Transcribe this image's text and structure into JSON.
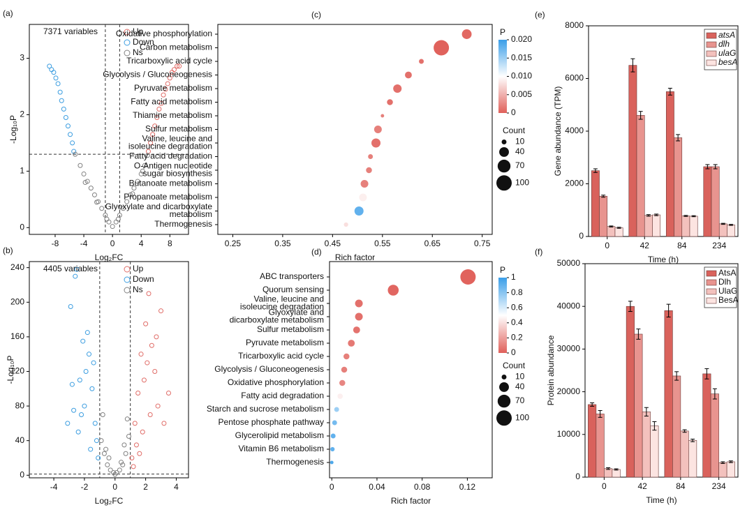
{
  "chart_data": [
    {
      "type": "volcano",
      "panel": "(a)",
      "annotation": "7371 variables",
      "xlabel": "Log₂FC",
      "ylabel": "-Log₁₀P",
      "xlim": [
        -11.6,
        10.6
      ],
      "xticks": [
        -8,
        -4,
        0,
        4,
        8
      ],
      "ylim": [
        -0.12,
        3.6
      ],
      "yticks": [
        0,
        1,
        2,
        3
      ],
      "vlines": [
        -1,
        1
      ],
      "hline": 1.3,
      "legend": "upper right",
      "series": [
        {
          "name": "Up",
          "color": "#e06c67",
          "x": [
            5.0,
            5.3,
            5.6,
            5.9,
            6.2,
            6.5,
            6.8,
            7.1,
            7.4,
            7.7,
            8.0,
            8.3,
            8.6,
            9.0,
            9.3
          ],
          "values": [
            1.35,
            1.5,
            1.65,
            1.8,
            1.95,
            2.1,
            2.2,
            2.35,
            2.45,
            2.55,
            2.65,
            2.75,
            2.8,
            2.86,
            2.86
          ]
        },
        {
          "name": "Down",
          "color": "#3b9de0",
          "x": [
            -5.4,
            -5.6,
            -5.9,
            -6.2,
            -6.5,
            -6.8,
            -7.1,
            -7.3,
            -7.6,
            -7.9,
            -8.2,
            -8.5,
            -8.8
          ],
          "values": [
            1.35,
            1.5,
            1.65,
            1.8,
            1.95,
            2.1,
            2.25,
            2.4,
            2.55,
            2.65,
            2.75,
            2.8,
            2.86
          ]
        },
        {
          "name": "Ns",
          "color": "#808080",
          "x": [
            -5.2,
            -4.5,
            -4,
            -3.5,
            -3,
            -2.5,
            -2,
            -1.5,
            -1,
            -0.5,
            0,
            0.5,
            1,
            1.5,
            2,
            2.5,
            3,
            3.5,
            4,
            4.5,
            4.9,
            -3.8,
            -2.2,
            -0.8,
            0.8,
            2.8,
            4.2
          ],
          "values": [
            1.3,
            1.1,
            0.95,
            0.82,
            0.7,
            0.58,
            0.46,
            0.34,
            0.22,
            0.1,
            0.02,
            0.1,
            0.22,
            0.34,
            0.46,
            0.58,
            0.7,
            0.82,
            0.95,
            1.1,
            1.28,
            0.8,
            0.45,
            0.15,
            0.15,
            0.6,
            1.0
          ]
        }
      ]
    },
    {
      "type": "volcano",
      "panel": "(b)",
      "annotation": "4405 variables",
      "xlabel": "Log₂FC",
      "ylabel": "-Log₁₀P",
      "xlim": [
        -5.6,
        4.8
      ],
      "xticks": [
        -4,
        -2,
        0,
        2,
        4
      ],
      "ylim": [
        -3,
        247
      ],
      "yticks": [
        0,
        40,
        80,
        120,
        160,
        200,
        240
      ],
      "vlines": [
        -1,
        1
      ],
      "hline": 1.3,
      "legend": "upper right",
      "series": [
        {
          "name": "Up",
          "color": "#e06c67",
          "x": [
            1.1,
            1.3,
            1.5,
            1.7,
            1.9,
            2.0,
            2.2,
            2.4,
            2.6,
            2.8,
            3.0,
            3.2,
            3.5,
            1.4,
            1.8,
            2.3,
            1.2,
            2.1,
            2.7,
            1.6
          ],
          "values": [
            20,
            60,
            95,
            140,
            110,
            175,
            210,
            150,
            120,
            80,
            190,
            60,
            95,
            35,
            50,
            70,
            10,
            130,
            160,
            25
          ]
        },
        {
          "name": "Down",
          "color": "#3b9de0",
          "x": [
            -1.1,
            -1.3,
            -1.5,
            -1.7,
            -1.9,
            -2.1,
            -2.3,
            -2.5,
            -2.7,
            -2.9,
            -1.2,
            -1.6,
            -2.0,
            -2.4,
            -2.6,
            -1.4,
            -1.8,
            -2.2,
            -3.1,
            -2.8
          ],
          "values": [
            20,
            60,
            100,
            140,
            120,
            155,
            110,
            238,
            75,
            195,
            40,
            30,
            80,
            50,
            230,
            130,
            165,
            70,
            60,
            105
          ]
        },
        {
          "name": "Ns",
          "color": "#808080",
          "x": [
            -0.9,
            -0.7,
            -0.5,
            -0.3,
            -0.1,
            0.1,
            0.3,
            0.5,
            0.7,
            0.9,
            -0.8,
            -0.4,
            0,
            0.4,
            0.8,
            -0.6,
            0.6
          ],
          "values": [
            40,
            25,
            12,
            6,
            3,
            3,
            6,
            12,
            25,
            45,
            70,
            20,
            1,
            15,
            65,
            30,
            35
          ]
        }
      ]
    },
    {
      "type": "dot",
      "panel": "(c)",
      "xlabel": "Rich factor",
      "xlim": [
        0.22,
        0.77
      ],
      "xticks": [
        0.25,
        0.35,
        0.45,
        0.55,
        0.65,
        0.75
      ],
      "categories": [
        "Oxidative phosphorylation",
        "Carbon metabolism",
        "Tricarboxylic acid cycle",
        "Glycolysis / Gluconeogenesis",
        "Pyruvate metabolism",
        "Fatty acid metabolism",
        "Thiamine metabolism",
        "Sulfur metabolism",
        [
          "Valine, leucine and",
          "isoleucine degradation"
        ],
        "Fatty acid degradation",
        [
          "O-Antigen nucleotide",
          "sugar biosynthesis"
        ],
        "Butanoate metabolism",
        "Propanoate metabolism",
        [
          "Glyoxylate and dicarboxylate",
          "metabolism"
        ],
        "Thermogenesis"
      ],
      "values": [
        0.719,
        0.668,
        0.628,
        0.602,
        0.58,
        0.565,
        0.55,
        0.541,
        0.537,
        0.526,
        0.523,
        0.514,
        0.511,
        0.503,
        0.477
      ],
      "count": [
        40,
        100,
        10,
        20,
        30,
        15,
        5,
        25,
        35,
        10,
        15,
        25,
        25,
        35,
        8
      ],
      "p": [
        0.0005,
        0.0001,
        0.001,
        0.001,
        0.001,
        0.001,
        0.002,
        0.002,
        0.001,
        0.002,
        0.002,
        0.002,
        0.009,
        0.018,
        0.008
      ],
      "colorbar": {
        "title": "P",
        "lim": [
          0,
          0.02
        ],
        "ticks": [
          0,
          0.005,
          {
            "value": 0.01,
            "label": "0.010"
          },
          0.015,
          {
            "value": 0.02,
            "label": "0.020"
          }
        ],
        "colors": [
          "#e0605a",
          "#ffffff",
          "#3a9ee8"
        ]
      },
      "size_legend": {
        "title": "Count",
        "values": [
          10,
          40,
          70,
          100
        ]
      }
    },
    {
      "type": "dot",
      "panel": "(d)",
      "xlabel": "Rich factor",
      "xlim": [
        -0.002,
        0.142
      ],
      "xticks": [
        0,
        0.04,
        0.08,
        0.12
      ],
      "categories": [
        "ABC transporters",
        "Quorum sensing",
        [
          "Valine, leucine and",
          "isoleucine degradation"
        ],
        [
          "Glyoxylate and",
          "dicarboxylate metabolism"
        ],
        "Sulfur metabolism",
        "Pyruvate metabolism",
        "Tricarboxylic acid cycle",
        "Glycolysis / Gluconeogenesis",
        "Oxidative phosphorylation",
        "Fatty acid degradation",
        "Starch and sucrose metabolism",
        "Pentose phosphate pathway",
        "Glycerolipid metabolism",
        "Vitamin B6 metabolism",
        "Thermogenesis"
      ],
      "values": [
        0.1206,
        0.0544,
        0.024,
        0.024,
        0.022,
        0.0173,
        0.013,
        0.011,
        0.0093,
        0.0074,
        0.0043,
        0.0025,
        0.0012,
        0.0006,
        0.0
      ],
      "count": [
        100,
        50,
        25,
        25,
        20,
        20,
        15,
        15,
        15,
        12,
        10,
        10,
        10,
        8,
        5
      ],
      "p": [
        0.01,
        0.02,
        0.05,
        0.05,
        0.06,
        0.08,
        0.1,
        0.1,
        0.12,
        0.45,
        0.75,
        0.85,
        0.9,
        0.9,
        0.95
      ],
      "colorbar": {
        "title": "P",
        "lim": [
          0,
          1
        ],
        "ticks": [
          0,
          0.2,
          0.4,
          0.6,
          0.8,
          1
        ],
        "colors": [
          "#e0605a",
          "#ffffff",
          "#3a9ee8"
        ]
      },
      "size_legend": {
        "title": "Count",
        "values": [
          10,
          40,
          70,
          100
        ]
      }
    },
    {
      "type": "grouped_bar",
      "panel": "(e)",
      "xlabel": "Time (h)",
      "ylabel": "Gene abundance (TPM)",
      "categories": [
        "0",
        "42",
        "84",
        "234"
      ],
      "ylim": [
        0,
        8000
      ],
      "yticks": [
        0,
        2000,
        4000,
        6000,
        8000
      ],
      "legend": "upper right",
      "legend_italic": true,
      "series": [
        {
          "name": "atsA",
          "color": "#d9625c",
          "values": [
            2500,
            6500,
            5500,
            2650
          ],
          "errors": [
            70,
            250,
            130,
            80
          ]
        },
        {
          "name": "dlh",
          "color": "#e8948f",
          "values": [
            1530,
            4600,
            3750,
            2650
          ],
          "errors": [
            40,
            150,
            120,
            80
          ]
        },
        {
          "name": "ulaG",
          "color": "#f3c1bd",
          "values": [
            380,
            800,
            780,
            480
          ],
          "errors": [
            20,
            30,
            20,
            20
          ]
        },
        {
          "name": "besA",
          "color": "#fce4e1",
          "values": [
            330,
            820,
            770,
            440
          ],
          "errors": [
            20,
            30,
            20,
            20
          ]
        }
      ]
    },
    {
      "type": "grouped_bar",
      "panel": "(f)",
      "xlabel": "Time (h)",
      "ylabel": "Protein abundance",
      "categories": [
        "0",
        "42",
        "84",
        "234"
      ],
      "ylim": [
        0,
        50000
      ],
      "yticks": [
        0,
        10000,
        20000,
        30000,
        40000,
        50000
      ],
      "legend": "upper right",
      "legend_italic": false,
      "series": [
        {
          "name": "AtsA",
          "color": "#d9625c",
          "values": [
            17000,
            40000,
            39000,
            24200
          ],
          "errors": [
            400,
            1200,
            1500,
            1200
          ]
        },
        {
          "name": "Dlh",
          "color": "#e8948f",
          "values": [
            14800,
            33500,
            23700,
            19500
          ],
          "errors": [
            800,
            1200,
            1000,
            1200
          ]
        },
        {
          "name": "UlaG",
          "color": "#f3c1bd",
          "values": [
            2000,
            15300,
            10800,
            3400
          ],
          "errors": [
            200,
            1000,
            300,
            200
          ]
        },
        {
          "name": "BesA",
          "color": "#fce4e1",
          "values": [
            1800,
            12000,
            8600,
            3600
          ],
          "errors": [
            150,
            1000,
            300,
            200
          ]
        }
      ]
    }
  ]
}
